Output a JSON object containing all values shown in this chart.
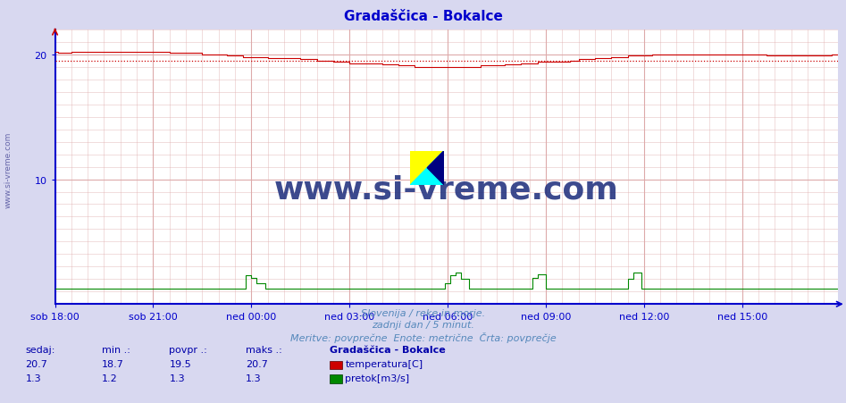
{
  "title": "Gradaščica - Bokalce",
  "title_color": "#0000cc",
  "title_fontsize": 11,
  "bg_color": "#d8d8f0",
  "plot_bg_color": "#ffffff",
  "xlim": [
    0,
    287
  ],
  "ylim": [
    0,
    22
  ],
  "yticks": [
    10,
    20
  ],
  "xtick_labels": [
    "sob 18:00",
    "sob 21:00",
    "ned 00:00",
    "ned 03:00",
    "ned 06:00",
    "ned 09:00",
    "ned 12:00",
    "ned 15:00"
  ],
  "xtick_positions": [
    0,
    36,
    72,
    108,
    144,
    180,
    216,
    252
  ],
  "temp_avg": 19.5,
  "temp_color": "#cc0000",
  "flow_color": "#008800",
  "avg_line_color": "#cc0000",
  "grid_major_color": "#ddaaaa",
  "grid_minor_color": "#ddaaaa",
  "axis_color": "#0000cc",
  "watermark": "www.si-vreme.com",
  "watermark_color": "#1a2a7a",
  "subtitle1": "Slovenija / reke in morje.",
  "subtitle2": "zadnji dan / 5 minut.",
  "subtitle3": "Meritve: povprečne  Enote: metrične  Črta: povprečje",
  "legend_title": "Gradaščica - Bokalce",
  "label_temp": "temperatura[C]",
  "label_flow": "pretok[m3/s]",
  "stat_headers": [
    "sedaj:",
    "min .:",
    "povpr .:",
    "maks .:"
  ],
  "stat_temp": [
    20.7,
    18.7,
    19.5,
    20.7
  ],
  "stat_flow": [
    1.3,
    1.2,
    1.3,
    1.3
  ],
  "text_color": "#0000aa",
  "left_label": "www.si-vreme.com"
}
